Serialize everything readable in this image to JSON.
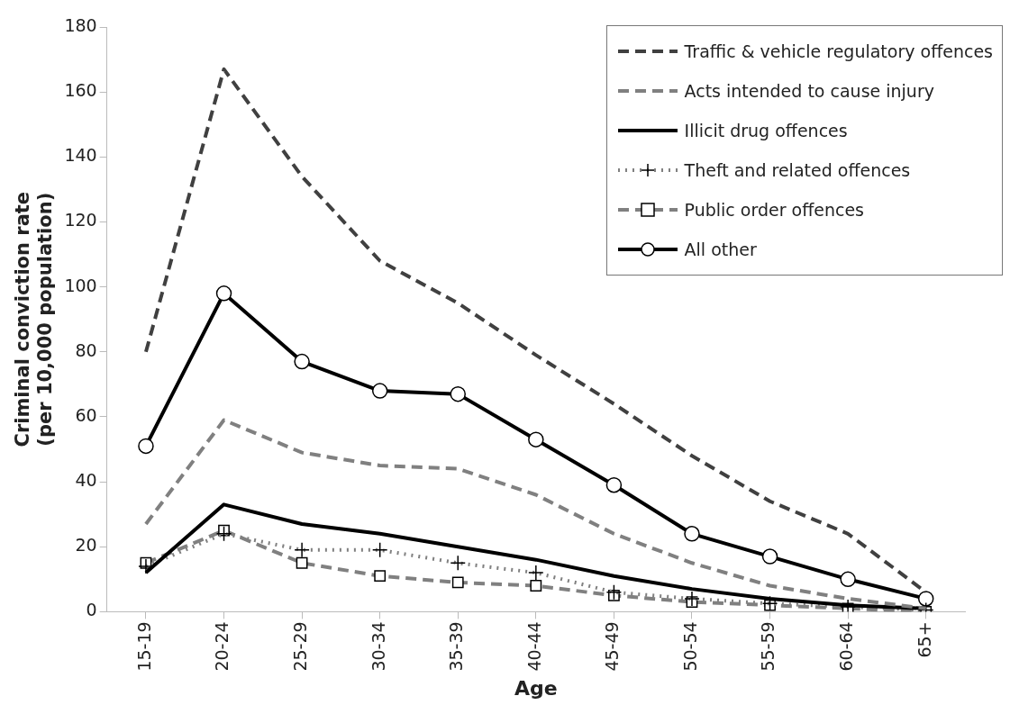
{
  "chart_data": {
    "type": "line",
    "xlabel": "Age",
    "ylabel": "Criminal conviction rate\n(per 10,000 population)",
    "categories": [
      "15-19",
      "20-24",
      "25-29",
      "30-34",
      "35-39",
      "40-44",
      "45-49",
      "50-54",
      "55-59",
      "60-64",
      "65+"
    ],
    "ylim": [
      0,
      180
    ],
    "yticks": [
      0,
      20,
      40,
      60,
      80,
      100,
      120,
      140,
      160,
      180
    ],
    "grid": false,
    "legend": "top right",
    "series": [
      {
        "name": "Traffic & vehicle regulatory offences",
        "color": "#404040",
        "line_style": "dashed",
        "marker": "none",
        "values": [
          80,
          167,
          134,
          108,
          95,
          79,
          64,
          48,
          34,
          24,
          6
        ]
      },
      {
        "name": "Acts intended to cause injury",
        "color": "#808080",
        "line_style": "dashed",
        "marker": "none",
        "values": [
          27,
          59,
          49,
          45,
          44,
          36,
          24,
          15,
          8,
          4,
          1
        ]
      },
      {
        "name": "Illicit drug offences",
        "color": "#000000",
        "line_style": "solid",
        "marker": "none",
        "values": [
          12,
          33,
          27,
          24,
          20,
          16,
          11,
          7,
          4,
          2,
          1
        ]
      },
      {
        "name": "Theft and related offences",
        "color": "#808080",
        "line_style": "dotted",
        "marker": "cross",
        "values": [
          14,
          24,
          19,
          19,
          15,
          12,
          6,
          4,
          2.5,
          1.5,
          0.5
        ]
      },
      {
        "name": "Public order offences",
        "color": "#808080",
        "line_style": "dashed",
        "marker": "square",
        "values": [
          15,
          25,
          15,
          11,
          9,
          8,
          5,
          3,
          2,
          1,
          0
        ]
      },
      {
        "name": "All other",
        "color": "#000000",
        "line_style": "solid",
        "marker": "circle",
        "values": [
          51,
          98,
          77,
          68,
          67,
          53,
          39,
          24,
          17,
          10,
          4
        ]
      }
    ]
  }
}
